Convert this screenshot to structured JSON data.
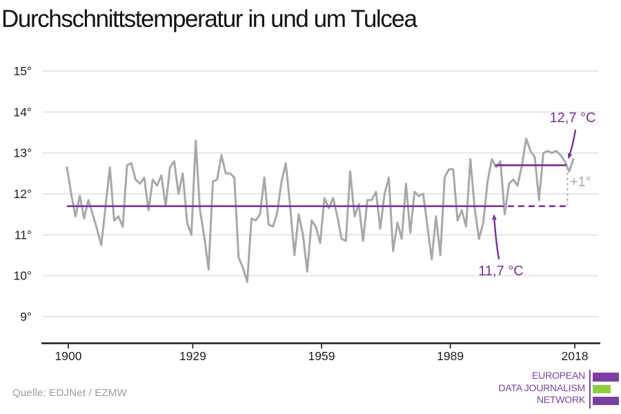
{
  "title": "Durchschnittstemperatur in und um Tulcea",
  "source": "Quelle: EDJNet / EZMW",
  "colors": {
    "accent_purple": "#7a2fa2",
    "series_gray": "#a8a8a8",
    "grid_gray": "#e4e4e4",
    "axis_black": "#1b1b1b",
    "muted_gray": "#a9a9a9",
    "logo_purple": "#7d3ea3",
    "logo_green": "#8dce3f"
  },
  "chart_data": {
    "type": "line",
    "title": "Durchschnittstemperatur in und um Tulcea",
    "xlabel": "",
    "ylabel": "",
    "grid": "horizontal-only",
    "legend": "none",
    "x_start": 1900,
    "x_end": 2018,
    "ylim": [
      8.4,
      15.3
    ],
    "yticks": [
      {
        "value": 15,
        "label": "15°"
      },
      {
        "value": 14,
        "label": "14°"
      },
      {
        "value": 13,
        "label": "13°"
      },
      {
        "value": 12,
        "label": "12°"
      },
      {
        "value": 11,
        "label": "11°"
      },
      {
        "value": 10,
        "label": "10°"
      },
      {
        "value": 9,
        "label": "9°"
      }
    ],
    "xticks": [
      {
        "year": 1900,
        "label": "1900"
      },
      {
        "year": 1929,
        "label": "1929"
      },
      {
        "year": 1959,
        "label": "1959"
      },
      {
        "year": 1989,
        "label": "1989"
      },
      {
        "year": 2018,
        "label": "2018"
      }
    ],
    "series": [
      {
        "name": "annual-mean-temperature",
        "x_first_year": 1900,
        "values": [
          12.65,
          12.0,
          11.45,
          11.95,
          11.4,
          11.85,
          11.5,
          11.15,
          10.75,
          11.7,
          12.65,
          11.35,
          11.45,
          11.2,
          12.7,
          12.75,
          12.35,
          12.25,
          12.4,
          11.6,
          12.35,
          12.2,
          12.45,
          11.7,
          12.65,
          12.8,
          12.0,
          12.5,
          11.3,
          11.0,
          13.3,
          11.6,
          10.95,
          10.15,
          12.3,
          12.35,
          12.95,
          12.5,
          12.5,
          12.4,
          10.45,
          10.2,
          9.85,
          11.4,
          11.35,
          11.5,
          12.4,
          11.25,
          11.2,
          11.55,
          12.3,
          12.75,
          11.7,
          10.5,
          11.5,
          11.0,
          10.1,
          11.35,
          11.2,
          10.8,
          11.9,
          11.65,
          11.9,
          11.45,
          10.9,
          10.85,
          12.55,
          11.45,
          11.75,
          10.85,
          11.85,
          11.85,
          12.05,
          11.15,
          12.0,
          12.4,
          10.6,
          11.3,
          10.9,
          12.25,
          11.05,
          12.05,
          11.95,
          12.0,
          11.2,
          10.4,
          11.45,
          10.5,
          12.4,
          12.6,
          12.6,
          11.35,
          11.6,
          11.2,
          12.85,
          11.65,
          10.9,
          11.3,
          12.3,
          12.85,
          12.65,
          12.8,
          11.5,
          12.25,
          12.35,
          12.2,
          12.7,
          13.35,
          13.05,
          12.9,
          11.85,
          13.0,
          13.05,
          13.0,
          13.05,
          12.95,
          12.8,
          12.55,
          12.85
        ]
      }
    ],
    "baselines": [
      {
        "value": 11.7,
        "label": "11,7 °C",
        "solid_span": [
          1900,
          2000.3
        ],
        "dashed_span": [
          2000.3,
          2016.6
        ]
      },
      {
        "value": 12.7,
        "label": "12,7 °C",
        "solid_span": [
          1999.8,
          2016.4
        ]
      }
    ],
    "annotations": {
      "delta_label": "+1°",
      "delta_year": 2016.6
    }
  },
  "logo": {
    "line1": "EUROPEAN",
    "line2": "DATA JOURNALISM",
    "line3": "NETWORK"
  }
}
